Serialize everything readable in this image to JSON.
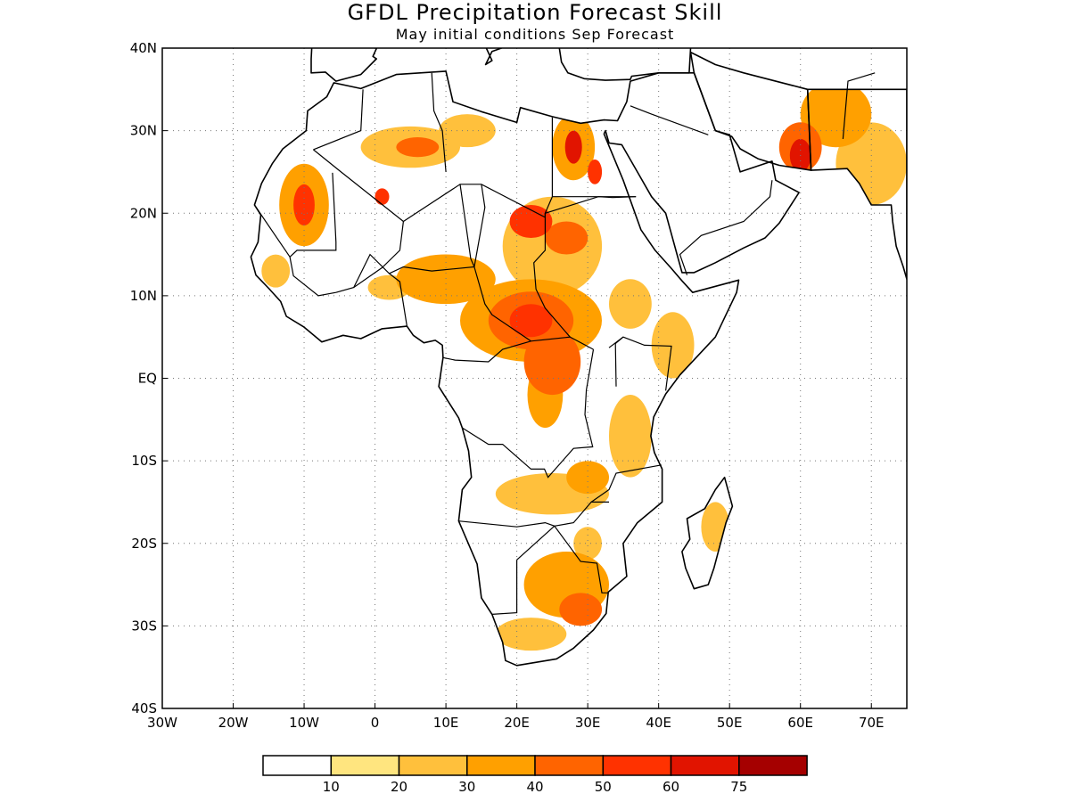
{
  "title": "GFDL Precipitation Forecast Skill",
  "subtitle": "May initial conditions  Sep Forecast",
  "lon_ticks": [
    "30W",
    "20W",
    "10W",
    "0",
    "10E",
    "20E",
    "30E",
    "40E",
    "50E",
    "60E",
    "70E"
  ],
  "lat_ticks": [
    "40N",
    "30N",
    "20N",
    "10N",
    "EQ",
    "10S",
    "20S",
    "30S",
    "40S"
  ],
  "lon_values": [
    -30,
    -20,
    -10,
    0,
    10,
    20,
    30,
    40,
    50,
    60,
    70
  ],
  "lat_values": [
    40,
    30,
    20,
    10,
    0,
    -10,
    -20,
    -30,
    -40
  ],
  "extent": {
    "lon_min": -30,
    "lon_max": 75,
    "lat_min": -40,
    "lat_max": 40
  },
  "colorbar": {
    "labels": [
      "10",
      "20",
      "30",
      "40",
      "50",
      "60",
      "75"
    ],
    "colors": [
      "#ffffff",
      "#ffe57f",
      "#ffc03c",
      "#ffa000",
      "#ff6400",
      "#ff3200",
      "#e11400",
      "#a50000"
    ]
  },
  "skill_regions": [
    {
      "lon": -10,
      "lat": 21,
      "rx": 3.5,
      "ry": 5,
      "level": 3
    },
    {
      "lon": -10,
      "lat": 21,
      "rx": 1.5,
      "ry": 2.5,
      "level": 5
    },
    {
      "lon": 5,
      "lat": 28,
      "rx": 7,
      "ry": 2.5,
      "level": 2
    },
    {
      "lon": 6,
      "lat": 28,
      "rx": 3,
      "ry": 1.2,
      "level": 4
    },
    {
      "lon": 13,
      "lat": 30,
      "rx": 4,
      "ry": 2,
      "level": 2
    },
    {
      "lon": 28,
      "lat": 28,
      "rx": 3,
      "ry": 4,
      "level": 3
    },
    {
      "lon": 28,
      "lat": 28,
      "rx": 1.2,
      "ry": 2,
      "level": 6
    },
    {
      "lon": 31,
      "lat": 25,
      "rx": 1,
      "ry": 1.5,
      "level": 5
    },
    {
      "lon": 1,
      "lat": 22,
      "rx": 1,
      "ry": 1,
      "level": 5
    },
    {
      "lon": 60,
      "lat": 28,
      "rx": 3,
      "ry": 3,
      "level": 4
    },
    {
      "lon": 60,
      "lat": 27,
      "rx": 1.5,
      "ry": 2,
      "level": 6
    },
    {
      "lon": 65,
      "lat": 32,
      "rx": 5,
      "ry": 4,
      "level": 3
    },
    {
      "lon": 70,
      "lat": 26,
      "rx": 5,
      "ry": 5,
      "level": 2
    },
    {
      "lon": 25,
      "lat": 16,
      "rx": 7,
      "ry": 6,
      "level": 2
    },
    {
      "lon": 22,
      "lat": 19,
      "rx": 3,
      "ry": 2,
      "level": 5
    },
    {
      "lon": 27,
      "lat": 17,
      "rx": 3,
      "ry": 2,
      "level": 4
    },
    {
      "lon": 10,
      "lat": 12,
      "rx": 7,
      "ry": 3,
      "level": 3
    },
    {
      "lon": 22,
      "lat": 7,
      "rx": 10,
      "ry": 5,
      "level": 3
    },
    {
      "lon": 22,
      "lat": 7,
      "rx": 6,
      "ry": 3.5,
      "level": 4
    },
    {
      "lon": 22,
      "lat": 7,
      "rx": 3,
      "ry": 2,
      "level": 5
    },
    {
      "lon": 25,
      "lat": 2,
      "rx": 4,
      "ry": 4,
      "level": 4
    },
    {
      "lon": 24,
      "lat": -2,
      "rx": 2.5,
      "ry": 4,
      "level": 3
    },
    {
      "lon": 36,
      "lat": -7,
      "rx": 3,
      "ry": 5,
      "level": 2
    },
    {
      "lon": 42,
      "lat": 4,
      "rx": 3,
      "ry": 4,
      "level": 2
    },
    {
      "lon": 25,
      "lat": -14,
      "rx": 8,
      "ry": 2.5,
      "level": 2
    },
    {
      "lon": 30,
      "lat": -12,
      "rx": 3,
      "ry": 2,
      "level": 3
    },
    {
      "lon": 48,
      "lat": -18,
      "rx": 2,
      "ry": 3,
      "level": 2
    },
    {
      "lon": 27,
      "lat": -25,
      "rx": 6,
      "ry": 4,
      "level": 3
    },
    {
      "lon": 29,
      "lat": -28,
      "rx": 3,
      "ry": 2,
      "level": 4
    },
    {
      "lon": 22,
      "lat": -31,
      "rx": 5,
      "ry": 2,
      "level": 2
    },
    {
      "lon": 30,
      "lat": -20,
      "rx": 2,
      "ry": 2,
      "level": 2
    },
    {
      "lon": 2,
      "lat": 11,
      "rx": 3,
      "ry": 1.5,
      "level": 2
    },
    {
      "lon": -14,
      "lat": 13,
      "rx": 2,
      "ry": 2,
      "level": 2
    },
    {
      "lon": 36,
      "lat": 9,
      "rx": 3,
      "ry": 3,
      "level": 2
    }
  ]
}
